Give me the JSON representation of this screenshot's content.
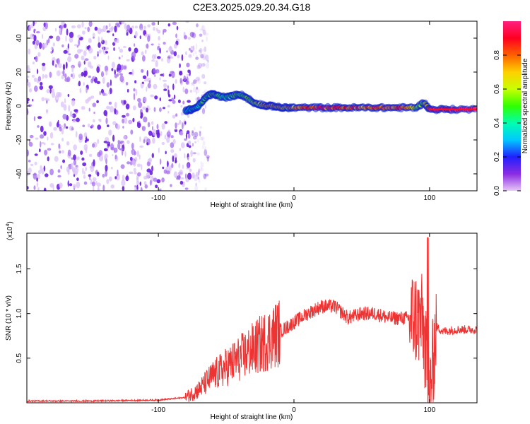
{
  "figure": {
    "title": "C2E3.2025.029.20.34.G18"
  },
  "chart_data": [
    {
      "type": "heatmap",
      "xlabel": "Height of straight line (km)",
      "ylabel": "Frequency (Hz)",
      "xlim": [
        -197,
        135
      ],
      "ylim": [
        -50,
        50
      ],
      "xticks": [
        -100,
        0,
        100
      ],
      "yticks": [
        -40,
        -20,
        0,
        20,
        40
      ],
      "noise_region_x": [
        -197,
        -75
      ],
      "track": [
        {
          "x": -80,
          "y": -3,
          "amp": 0.35
        },
        {
          "x": -76,
          "y": -2,
          "amp": 0.4
        },
        {
          "x": -72,
          "y": -1,
          "amp": 0.4
        },
        {
          "x": -68,
          "y": 2,
          "amp": 0.45
        },
        {
          "x": -64,
          "y": 6,
          "amp": 0.5
        },
        {
          "x": -60,
          "y": 7,
          "amp": 0.55
        },
        {
          "x": -56,
          "y": 6,
          "amp": 0.5
        },
        {
          "x": -50,
          "y": 5,
          "amp": 0.45
        },
        {
          "x": -45,
          "y": 6,
          "amp": 0.5
        },
        {
          "x": -40,
          "y": 7,
          "amp": 0.5
        },
        {
          "x": -35,
          "y": 5,
          "amp": 0.5
        },
        {
          "x": -30,
          "y": 2,
          "amp": 0.55
        },
        {
          "x": -25,
          "y": 1,
          "amp": 0.6
        },
        {
          "x": -20,
          "y": 0,
          "amp": 0.75
        },
        {
          "x": -15,
          "y": 0,
          "amp": 0.7
        },
        {
          "x": -10,
          "y": -1,
          "amp": 0.75
        },
        {
          "x": -5,
          "y": -1,
          "amp": 0.7
        },
        {
          "x": 0,
          "y": -1,
          "amp": 0.75
        },
        {
          "x": 10,
          "y": -1,
          "amp": 0.8
        },
        {
          "x": 20,
          "y": -1,
          "amp": 0.85
        },
        {
          "x": 30,
          "y": -1,
          "amp": 0.85
        },
        {
          "x": 40,
          "y": -1,
          "amp": 0.85
        },
        {
          "x": 50,
          "y": -1,
          "amp": 0.8
        },
        {
          "x": 60,
          "y": -1,
          "amp": 0.85
        },
        {
          "x": 70,
          "y": -1,
          "amp": 0.8
        },
        {
          "x": 80,
          "y": -1,
          "amp": 0.85
        },
        {
          "x": 90,
          "y": -1,
          "amp": 0.6
        },
        {
          "x": 96,
          "y": 2,
          "amp": 0.5
        },
        {
          "x": 100,
          "y": -2,
          "amp": 0.95
        },
        {
          "x": 110,
          "y": -2,
          "amp": 1.0
        },
        {
          "x": 120,
          "y": -2,
          "amp": 1.0
        },
        {
          "x": 135,
          "y": -2,
          "amp": 1.0
        }
      ],
      "colorbar": {
        "label": "Normalized spectral amplitude",
        "range": [
          0,
          1
        ],
        "ticks": [
          0.0,
          0.2,
          0.4,
          0.6,
          0.8
        ]
      }
    },
    {
      "type": "line",
      "xlabel": "Height of straight line (km)",
      "ylabel": "SNR (10 * v/v)",
      "y_multiplier_label": "(x10",
      "y_multiplier_exponent": "4",
      "y_multiplier_close": ")",
      "xlim": [
        -197,
        135
      ],
      "ylim": [
        0,
        1.9
      ],
      "xticks": [
        -100,
        0,
        100
      ],
      "yticks": [
        0.5,
        1.0,
        1.5
      ],
      "series": [
        {
          "color": "#ee3333",
          "x": [
            -197,
            -150,
            -100,
            -80,
            -70,
            -60,
            -50,
            -40,
            -30,
            -20,
            -10,
            0,
            10,
            20,
            30,
            40,
            50,
            60,
            70,
            80,
            90,
            95,
            100,
            105,
            110,
            120,
            135
          ],
          "y": [
            0.02,
            0.02,
            0.03,
            0.06,
            0.15,
            0.3,
            0.4,
            0.5,
            0.6,
            0.7,
            0.8,
            0.9,
            1.0,
            1.08,
            1.08,
            0.95,
            1.0,
            1.0,
            0.95,
            0.95,
            0.95,
            0.9,
            0.05,
            0.85,
            0.8,
            0.82,
            0.82
          ]
        }
      ]
    }
  ]
}
